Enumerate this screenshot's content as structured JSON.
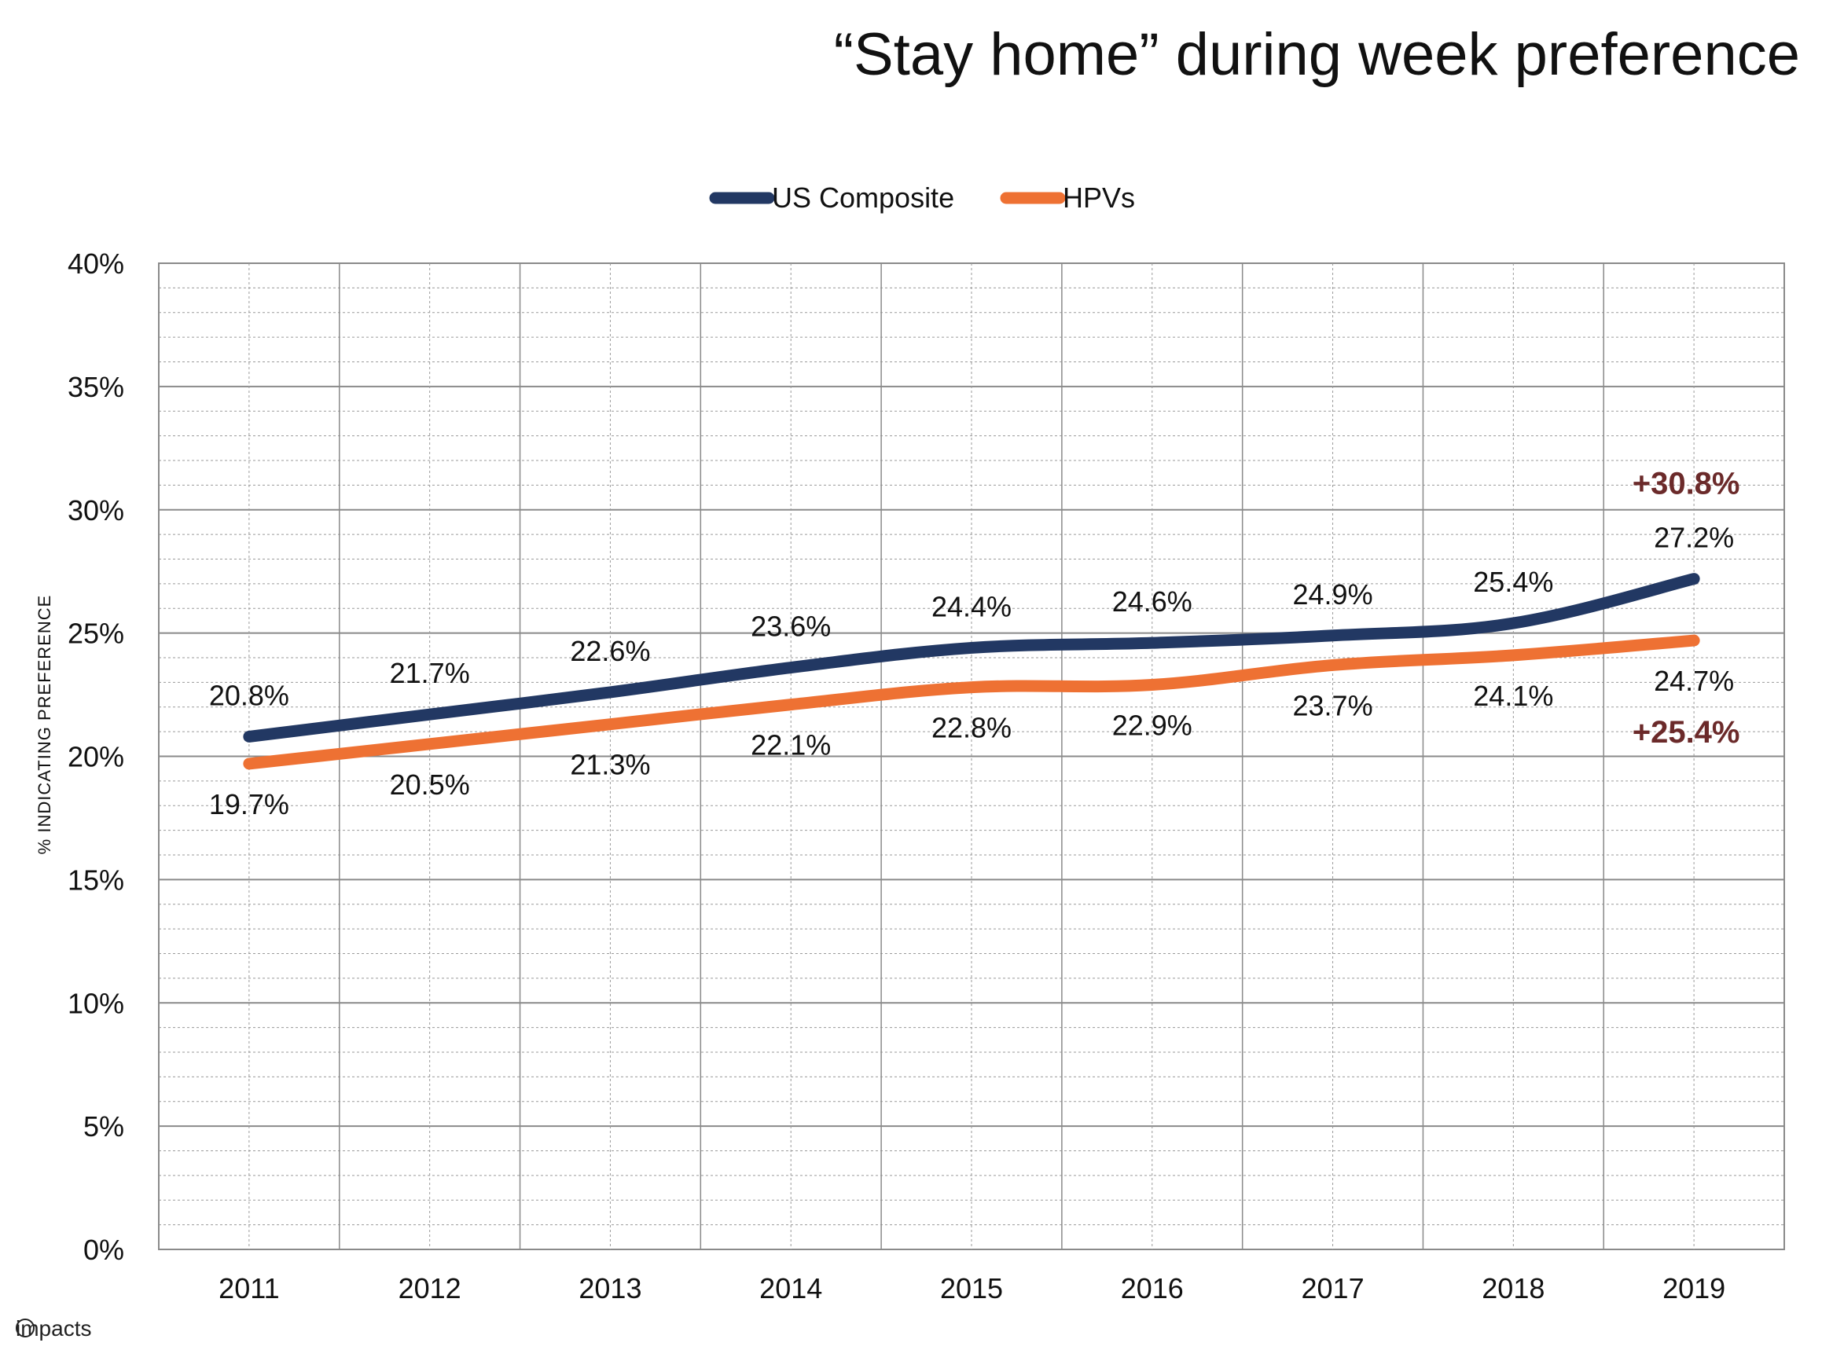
{
  "chart_data": {
    "type": "line",
    "title": "“Stay home” during week preference",
    "xlabel": "",
    "ylabel": "% INDICATING PREFERENCE",
    "categories": [
      "2011",
      "2012",
      "2013",
      "2014",
      "2015",
      "2016",
      "2017",
      "2018",
      "2019"
    ],
    "ylim": [
      0,
      40
    ],
    "yticks": [
      0,
      5,
      10,
      15,
      20,
      25,
      30,
      35,
      40
    ],
    "ytick_labels": [
      "0%",
      "5%",
      "10%",
      "15%",
      "20%",
      "25%",
      "30%",
      "35%",
      "40%"
    ],
    "grid": true,
    "legend_position": "top-center",
    "series": [
      {
        "name": "US Composite",
        "color": "#223863",
        "values": [
          20.8,
          21.7,
          22.6,
          23.6,
          24.4,
          24.6,
          24.9,
          25.4,
          27.2
        ],
        "labels": [
          "20.8%",
          "21.7%",
          "22.6%",
          "23.6%",
          "24.4%",
          "24.6%",
          "24.9%",
          "25.4%",
          "27.2%"
        ],
        "change_label": "+30.8%"
      },
      {
        "name": "HPVs",
        "color": "#EE7133",
        "values": [
          19.7,
          20.5,
          21.3,
          22.1,
          22.8,
          22.9,
          23.7,
          24.1,
          24.7
        ],
        "labels": [
          "19.7%",
          "20.5%",
          "21.3%",
          "22.1%",
          "22.8%",
          "22.9%",
          "23.7%",
          "24.1%",
          "24.7%"
        ],
        "change_label": "+25.4%"
      }
    ],
    "change_label_color": "#6B2A2A"
  },
  "brand": {
    "logo_text": "impacts"
  }
}
